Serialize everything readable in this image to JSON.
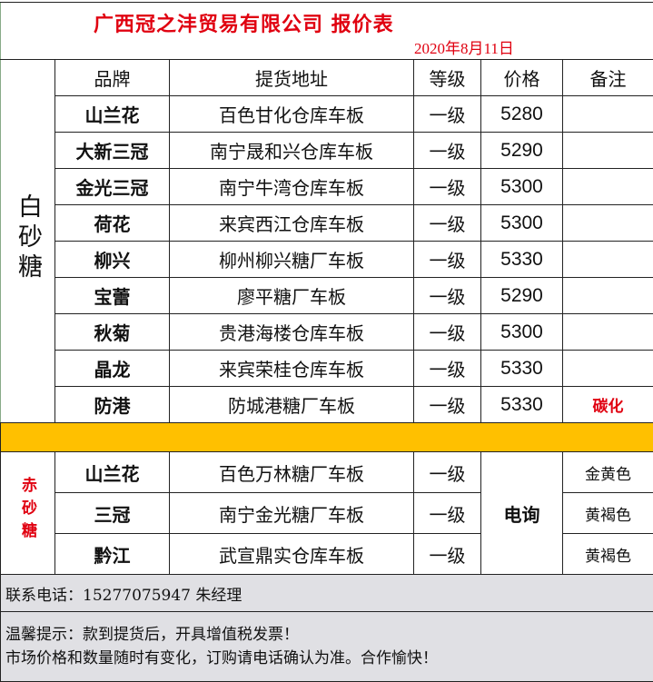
{
  "title": "广西冠之沣贸易有限公司  报价表",
  "date": "2020年8月11日",
  "headers": {
    "brand": "品牌",
    "address": "提货地址",
    "grade": "等级",
    "price": "价格",
    "note": "备注"
  },
  "white_sugar": {
    "category": "白砂糖",
    "rows": [
      {
        "brand": "山兰花",
        "address": "百色甘化仓库车板",
        "grade": "一级",
        "price": "5280",
        "note": ""
      },
      {
        "brand": "大新三冠",
        "address": "南宁晟和兴仓库车板",
        "grade": "一级",
        "price": "5290",
        "note": ""
      },
      {
        "brand": "金光三冠",
        "address": "南宁牛湾仓库车板",
        "grade": "一级",
        "price": "5300",
        "note": ""
      },
      {
        "brand": "荷花",
        "address": "来宾西江仓库车板",
        "grade": "一级",
        "price": "5300",
        "note": ""
      },
      {
        "brand": "柳兴",
        "address": "柳州柳兴糖厂车板",
        "grade": "一级",
        "price": "5330",
        "note": ""
      },
      {
        "brand": "宝蕾",
        "address": "廖平糖厂车板",
        "grade": "一级",
        "price": "5290",
        "note": ""
      },
      {
        "brand": "秋菊",
        "address": "贵港海楼仓库车板",
        "grade": "一级",
        "price": "5300",
        "note": ""
      },
      {
        "brand": "晶龙",
        "address": "来宾荣桂仓库车板",
        "grade": "一级",
        "price": "5330",
        "note": ""
      },
      {
        "brand": "防港",
        "address": "防城港糖厂车板",
        "grade": "一级",
        "price": "5330",
        "note": "碳化"
      }
    ]
  },
  "red_sugar": {
    "category": "赤砂糖",
    "price": "电询",
    "rows": [
      {
        "brand": "山兰花",
        "address": "百色万林糖厂车板",
        "grade": "一级",
        "note": "金黄色"
      },
      {
        "brand": "三冠",
        "address": "南宁金光糖厂车板",
        "grade": "一级",
        "note": "黄褐色"
      },
      {
        "brand": "黔江",
        "address": "武宣鼎实仓库车板",
        "grade": "一级",
        "note": "黄褐色"
      }
    ]
  },
  "contact": "联系电话：15277075947 朱经理",
  "tips": [
    "温馨提示：款到提货后，开具增值税发票！",
    "市场价格和数量随时有变化，订购请电话确认为准。合作愉快！"
  ],
  "colors": {
    "title": "#e00010",
    "band": "#ffc000",
    "footer": "#e0e0e4"
  }
}
